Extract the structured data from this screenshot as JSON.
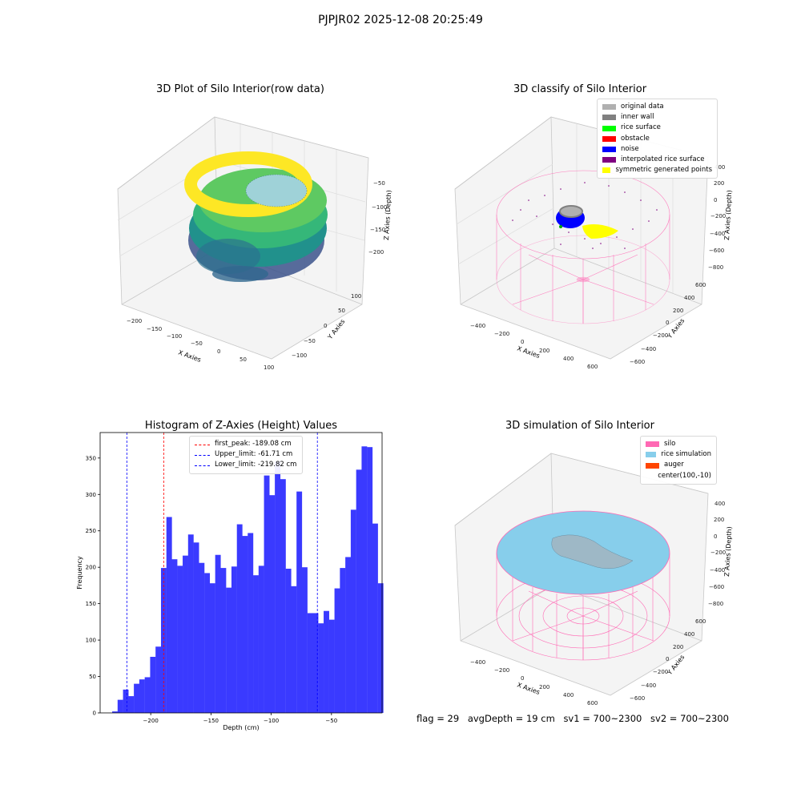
{
  "suptitle": "PJPJR02 2025-12-08 20:25:49",
  "footer": {
    "flag": "flag = 29",
    "avg_depth": "avgDepth = 19 cm",
    "sv1": "sv1 = 700~2300",
    "sv2": "sv2 = 700~2300"
  },
  "colors": {
    "bar": "#3a3aff",
    "peak_line": "#ff0000",
    "limit_line": "#0000ff",
    "silo": "#ff69b4",
    "rice": "#87ceeb"
  },
  "chart_data": [
    {
      "type": "scatter3d",
      "title": "3D Plot of Silo Interior(row data)",
      "xlabel": "X Axies",
      "ylabel": "Y Axies",
      "zlabel": "Z Axies (Depth)",
      "x_ticks": [
        "−200",
        "−150",
        "−100",
        "−50",
        "0",
        "50",
        "100"
      ],
      "y_ticks": [
        "−100",
        "−50",
        "0",
        "50",
        "100"
      ],
      "z_ticks": [
        "−50",
        "−100",
        "−150",
        "−200"
      ],
      "colormap": "viridis"
    },
    {
      "type": "scatter3d",
      "title": "3D classify of Silo Interior",
      "xlabel": "X Axies",
      "ylabel": "Y Axies",
      "zlabel": "Z Axies (Depth)",
      "x_ticks": [
        "−400",
        "−200",
        "0",
        "200",
        "400",
        "600"
      ],
      "y_ticks": [
        "−600",
        "−400",
        "−200",
        "0",
        "200",
        "400",
        "600"
      ],
      "z_ticks": [
        "400",
        "200",
        "0",
        "−200",
        "−400",
        "−600",
        "−800"
      ],
      "legend": [
        {
          "label": "original data",
          "color": "#b0b0b0"
        },
        {
          "label": "inner wall",
          "color": "#808080"
        },
        {
          "label": "rice surface",
          "color": "#00ff00"
        },
        {
          "label": "obstacle",
          "color": "#ff0000"
        },
        {
          "label": "noise",
          "color": "#0000ff"
        },
        {
          "label": "interpolated rice surface",
          "color": "#800080"
        },
        {
          "label": "symmetric generated points",
          "color": "#ffff00"
        }
      ]
    },
    {
      "type": "bar",
      "title": "Histogram of Z-Axies (Height) Values",
      "xlabel": "Depth (cm)",
      "ylabel": "Frequency",
      "xlim": [
        -242,
        -8
      ],
      "ylim": [
        0,
        385
      ],
      "x_ticks": [
        -200,
        -150,
        -100,
        -50
      ],
      "x_tick_labels": [
        "−200",
        "−150",
        "−100",
        "−50"
      ],
      "y_ticks": [
        0,
        50,
        100,
        150,
        200,
        250,
        300,
        350
      ],
      "bin_start": -232,
      "bin_width": 4.5,
      "values": [
        2,
        18,
        32,
        23,
        40,
        46,
        49,
        77,
        91,
        199,
        269,
        211,
        202,
        216,
        245,
        234,
        206,
        192,
        178,
        217,
        199,
        172,
        201,
        259,
        243,
        247,
        189,
        202,
        326,
        299,
        345,
        321,
        198,
        174,
        304,
        200,
        137,
        137,
        123,
        140,
        128,
        171,
        199,
        214,
        279,
        334,
        366,
        365,
        260,
        178
      ],
      "vlines": [
        {
          "label": "first_peak: -189.08 cm",
          "x": -189.08,
          "color": "#ff0000"
        },
        {
          "label": "Upper_limit: -61.71 cm",
          "x": -61.71,
          "color": "#0000ff"
        },
        {
          "label": "Lower_limit: -219.82 cm",
          "x": -219.82,
          "color": "#0000ff"
        }
      ]
    },
    {
      "type": "surface3d",
      "title": "3D simulation of Silo Interior",
      "xlabel": "X Axies",
      "ylabel": "Y Axies",
      "zlabel": "Z Axies (Depth)",
      "x_ticks": [
        "−400",
        "−200",
        "0",
        "200",
        "400",
        "600"
      ],
      "y_ticks": [
        "−600",
        "−400",
        "−200",
        "0",
        "200",
        "400",
        "600"
      ],
      "z_ticks": [
        "400",
        "200",
        "0",
        "−200",
        "−400",
        "−600",
        "−800"
      ],
      "legend": [
        {
          "label": "silo",
          "color": "#ff69b4"
        },
        {
          "label": "rice simulation",
          "color": "#87ceeb"
        },
        {
          "label": "auger",
          "color": "#ff4500"
        },
        {
          "label": "center(100,-10)",
          "color": ""
        }
      ]
    }
  ]
}
